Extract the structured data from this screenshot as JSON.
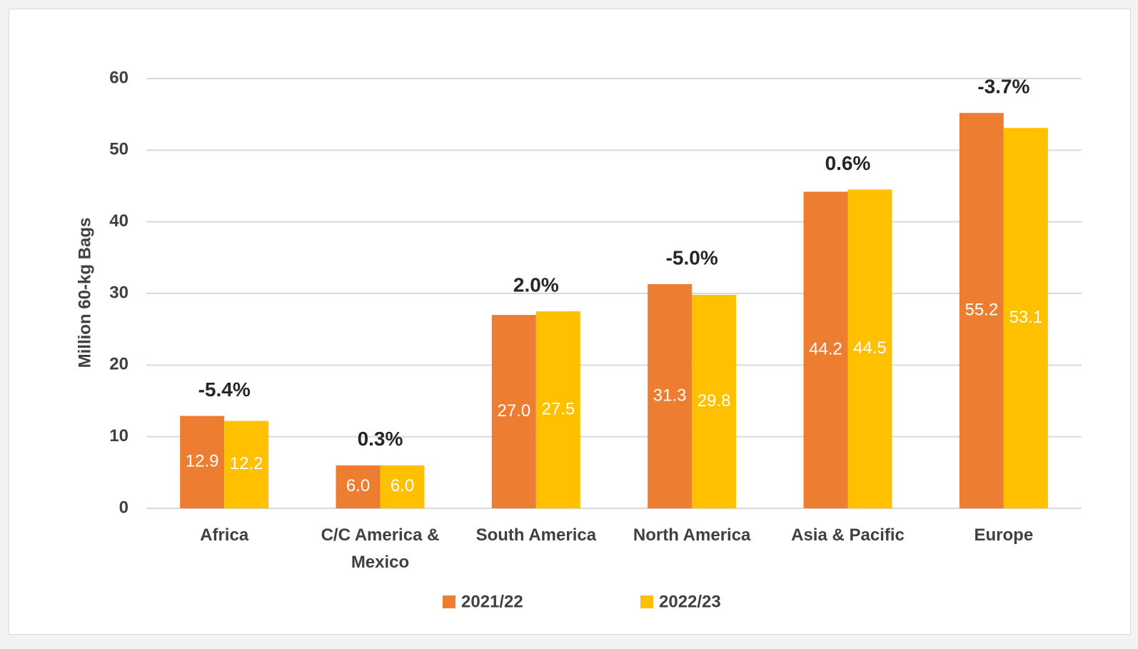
{
  "chart_data": {
    "type": "bar",
    "y_label": "Million 60-kg Bags",
    "categories": [
      "Africa",
      "C/C America & Mexico",
      "South America",
      "North America",
      "Asia & Pacific",
      "Europe"
    ],
    "series": [
      {
        "name": "2021/22",
        "color": "#ed7d31",
        "values": [
          12.9,
          6.0,
          27.0,
          31.3,
          44.2,
          55.2
        ],
        "value_labels": [
          "12.9",
          "6.0",
          "27.0",
          "31.3",
          "44.2",
          "55.2"
        ]
      },
      {
        "name": "2022/23",
        "color": "#ffc000",
        "values": [
          12.2,
          6.0,
          27.5,
          29.8,
          44.5,
          53.1
        ],
        "value_labels": [
          "12.2",
          "6.0",
          "27.5",
          "29.8",
          "44.5",
          "53.1"
        ]
      }
    ],
    "annotations": [
      "-5.4%",
      "0.3%",
      "2.0%",
      "-5.0%",
      "0.6%",
      "-3.7%"
    ],
    "ylim": [
      0,
      60
    ],
    "yticks": [
      0,
      10,
      20,
      30,
      40,
      50,
      60
    ],
    "grid": true,
    "legend": "bottom"
  }
}
